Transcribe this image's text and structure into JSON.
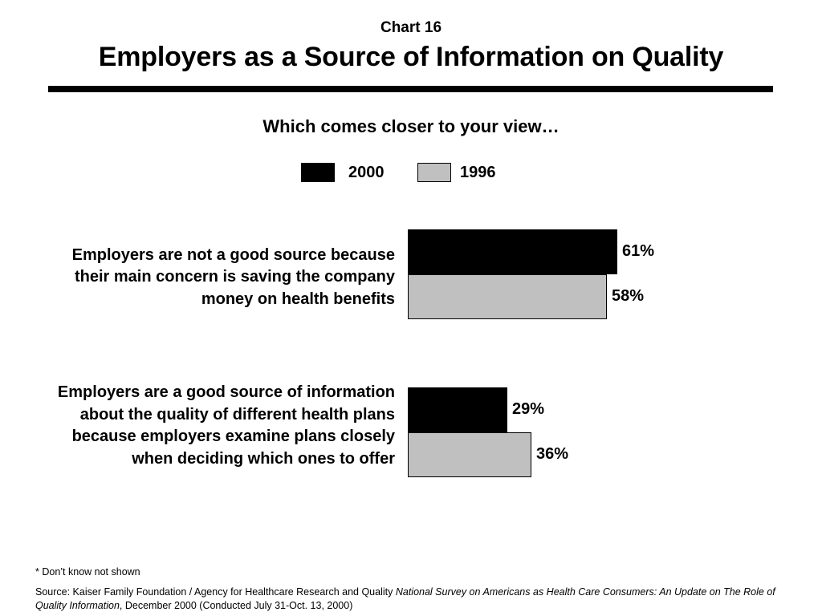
{
  "header": {
    "chart_number": "Chart 16",
    "title": "Employers as a Source of Information on Quality",
    "question": "Which comes closer to your view…"
  },
  "colors": {
    "series_2000": "#000000",
    "series_1996": "#c0c0c0",
    "rule": "#000000"
  },
  "chart_data": {
    "type": "bar",
    "orientation": "horizontal",
    "title": "Employers as a Source of Information on Quality",
    "subtitle": "Which comes closer to your view…",
    "categories": [
      [
        "Employers are not a good source because",
        "their main concern is saving the company",
        "money on health benefits"
      ],
      [
        "Employers are a good source of information",
        "about the quality of different health plans",
        "because employers examine plans closely",
        "when deciding which ones to offer"
      ]
    ],
    "series": [
      {
        "name": "2000",
        "values": [
          61,
          29
        ],
        "labels": [
          "61%",
          "29%"
        ],
        "color": "#000000"
      },
      {
        "name": "1996",
        "values": [
          58,
          36
        ],
        "labels": [
          "58%",
          "36%"
        ],
        "color": "#c0c0c0"
      }
    ],
    "xlim": [
      0,
      100
    ],
    "unit": "%",
    "legend": "top-center",
    "grid": false,
    "axes_visible": false
  },
  "footer": {
    "note": "* Don’t know not shown",
    "source_prefix": "Source: Kaiser Family Foundation / Agency for Healthcare Research and Quality ",
    "source_title": "National Survey on Americans as Health Care Consumers:  An Update on The Role of Quality Information",
    "source_suffix": ", December 2000 (Conducted July 31-Oct. 13, 2000)"
  }
}
